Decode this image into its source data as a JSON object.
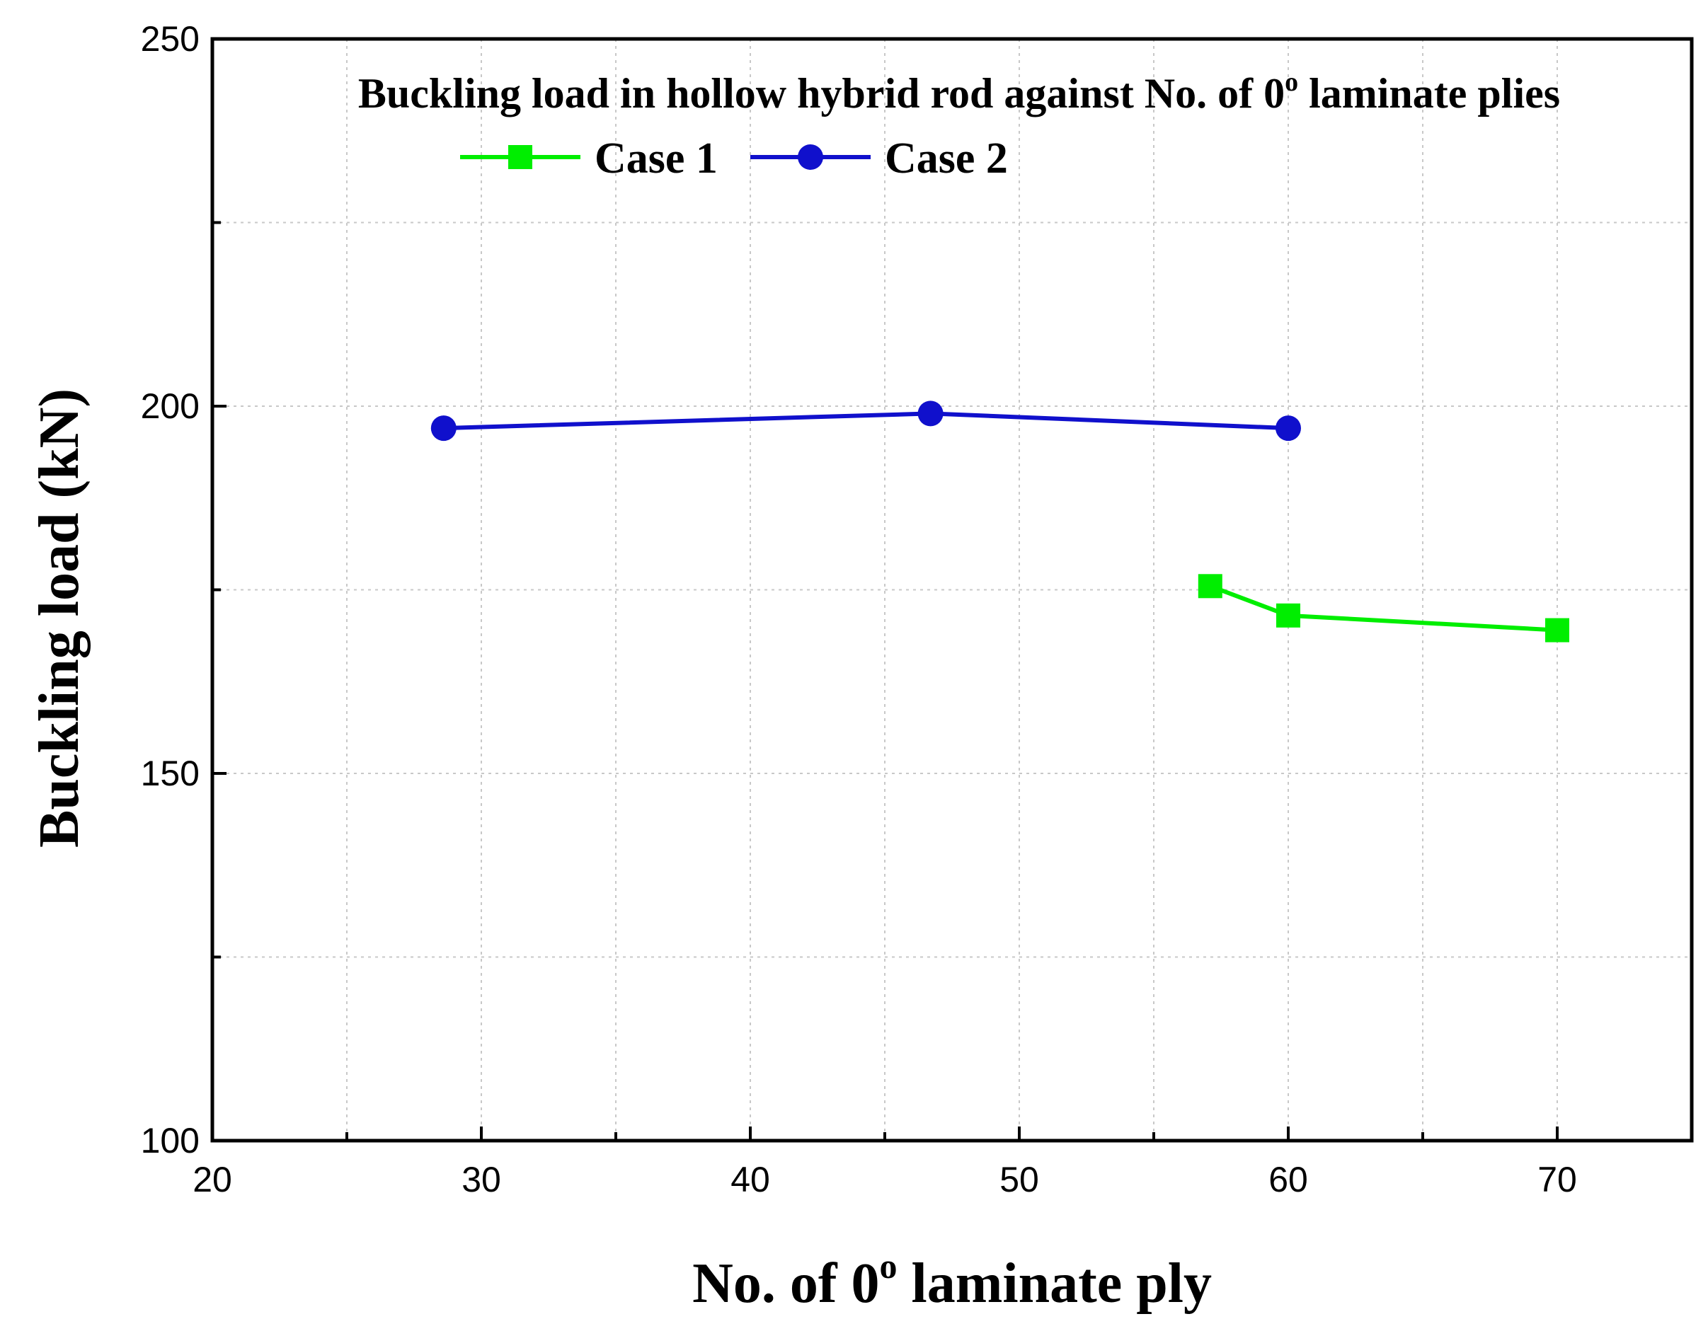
{
  "chart_data": {
    "type": "line",
    "title": "Buckling load in hollow hybrid rod against No. of 0",
    "title_sup": "o",
    "title_tail": " laminate plies",
    "xlabel": "No. of 0",
    "xlabel_sup": "o",
    "xlabel_tail": " laminate ply",
    "ylabel": "Buckling load (kN)",
    "xlim": [
      20,
      75
    ],
    "ylim": [
      100,
      250
    ],
    "x_ticks": [
      20,
      30,
      40,
      50,
      60,
      70
    ],
    "y_ticks": [
      100,
      150,
      200,
      250
    ],
    "x_minor_step": 5,
    "y_minor_step": 25,
    "grid": true,
    "legend_position": "top-left",
    "series": [
      {
        "name": "Case 1",
        "color": "#00ee00",
        "marker": "square",
        "x": [
          57.1,
          60,
          70
        ],
        "y": [
          175.5,
          171.5,
          169.5
        ]
      },
      {
        "name": "Case 2",
        "color": "#1010cc",
        "marker": "circle",
        "x": [
          28.6,
          46.7,
          60
        ],
        "y": [
          197,
          199,
          197
        ]
      }
    ]
  }
}
